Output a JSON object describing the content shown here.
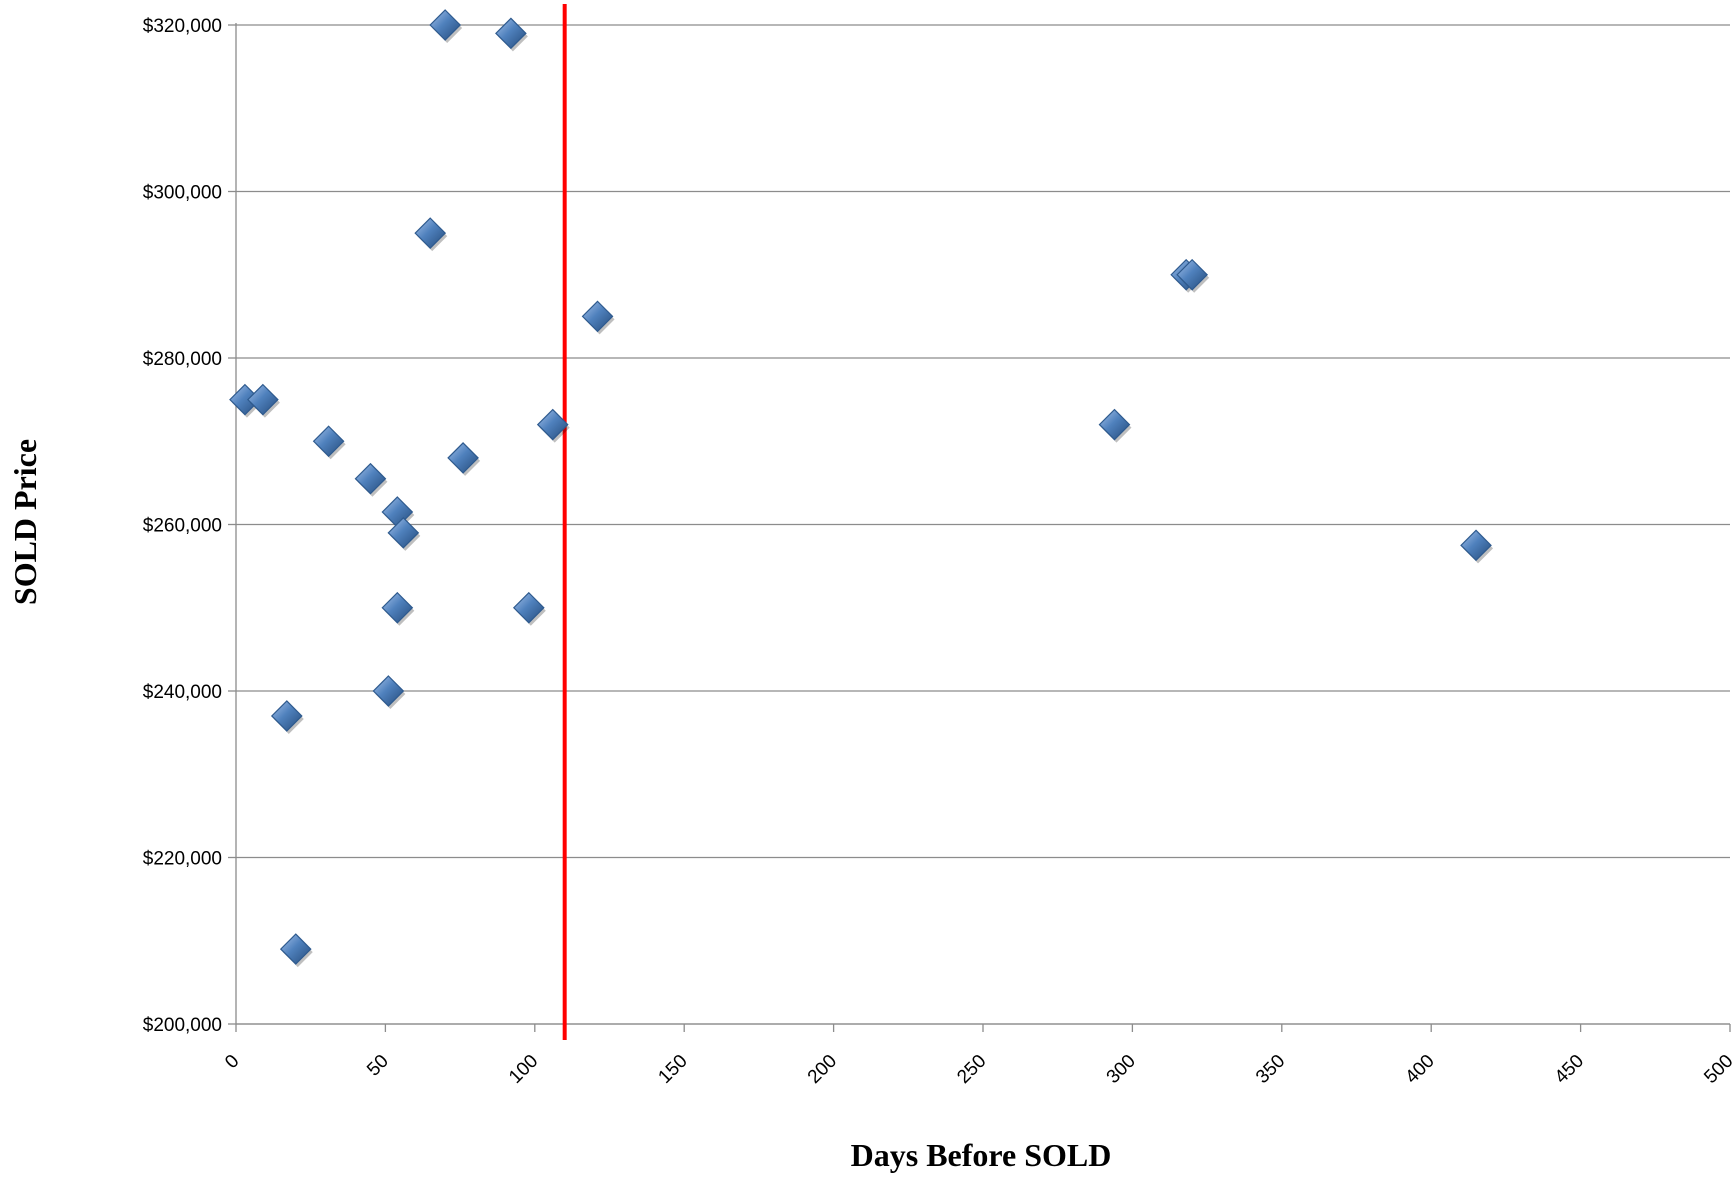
{
  "chart_data": {
    "type": "scatter",
    "xlabel": "Days Before SOLD",
    "ylabel": "SOLD Price",
    "xlim": [
      0,
      500
    ],
    "ylim": [
      200000,
      320000
    ],
    "x_ticks": [
      0,
      50,
      100,
      150,
      200,
      250,
      300,
      350,
      400,
      450,
      500
    ],
    "y_ticks": [
      200000,
      220000,
      240000,
      260000,
      280000,
      300000,
      320000
    ],
    "x_tick_labels": [
      "0",
      "50",
      "100",
      "150",
      "200",
      "250",
      "300",
      "350",
      "400",
      "450",
      "500"
    ],
    "y_tick_labels": [
      "$200,000",
      "$220,000",
      "$240,000",
      "$260,000",
      "$280,000",
      "$300,000",
      "$320,000"
    ],
    "grid": "horizontal",
    "legend": "none",
    "marker": "diamond",
    "marker_color": "#4F81BD",
    "reference_line": {
      "x": 110,
      "color": "#FF0000"
    },
    "points": [
      {
        "x": 3,
        "y": 275000
      },
      {
        "x": 9,
        "y": 275000
      },
      {
        "x": 17,
        "y": 237000
      },
      {
        "x": 20,
        "y": 209000
      },
      {
        "x": 31,
        "y": 270000
      },
      {
        "x": 45,
        "y": 265500
      },
      {
        "x": 51,
        "y": 240000
      },
      {
        "x": 54,
        "y": 250000
      },
      {
        "x": 54,
        "y": 261500
      },
      {
        "x": 56,
        "y": 259000
      },
      {
        "x": 65,
        "y": 295000
      },
      {
        "x": 70,
        "y": 320000
      },
      {
        "x": 76,
        "y": 268000
      },
      {
        "x": 92,
        "y": 319000
      },
      {
        "x": 98,
        "y": 250000
      },
      {
        "x": 106,
        "y": 272000
      },
      {
        "x": 121,
        "y": 285000
      },
      {
        "x": 294,
        "y": 272000
      },
      {
        "x": 318,
        "y": 290000
      },
      {
        "x": 320,
        "y": 290000
      },
      {
        "x": 415,
        "y": 257500
      }
    ]
  }
}
